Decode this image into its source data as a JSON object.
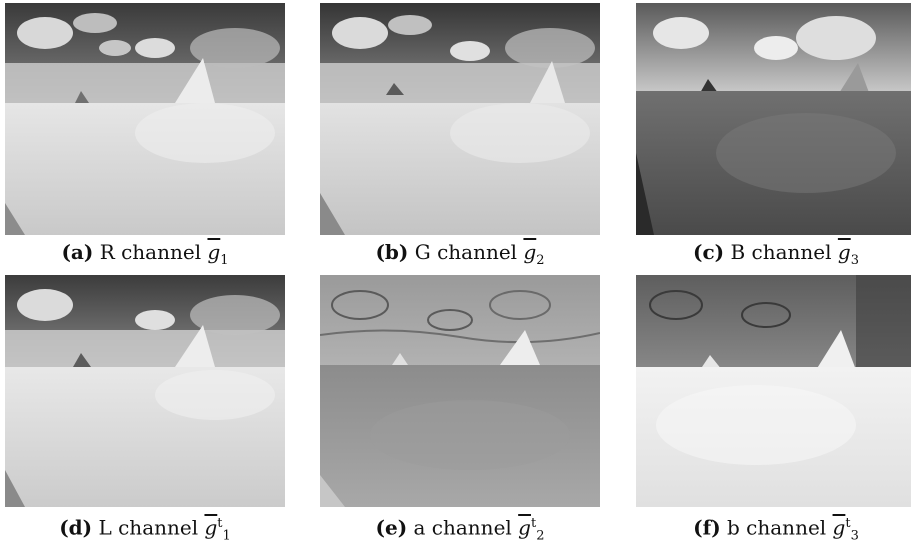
{
  "figure": {
    "panels": [
      {
        "label": "(a)",
        "text": "R channel",
        "symbol": "g",
        "sub": "1",
        "sup": ""
      },
      {
        "label": "(b)",
        "text": "G channel",
        "symbol": "g",
        "sub": "2",
        "sup": ""
      },
      {
        "label": "(c)",
        "text": "B channel",
        "symbol": "g",
        "sub": "3",
        "sup": ""
      },
      {
        "label": "(d)",
        "text": "L channel",
        "symbol": "g",
        "sub": "1",
        "sup": "t"
      },
      {
        "label": "(e)",
        "text": "a channel",
        "symbol": "g",
        "sub": "2",
        "sup": "t"
      },
      {
        "label": "(f)",
        "text": "b channel",
        "symbol": "g",
        "sub": "3",
        "sup": "t"
      }
    ]
  }
}
